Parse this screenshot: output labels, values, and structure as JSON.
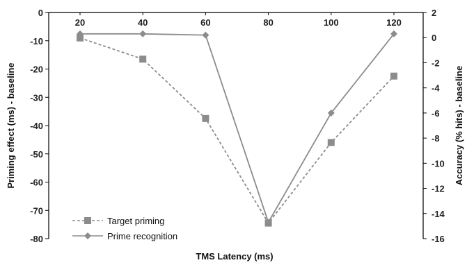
{
  "chart_data": {
    "type": "line",
    "x": [
      20,
      40,
      60,
      80,
      100,
      120
    ],
    "xlabel": "TMS Latency (ms)",
    "ylabel_left": "Priming effect (ms) - baseline",
    "ylabel_right": "Accuracy (% hits) - baseline",
    "ylim_left": [
      -80,
      0
    ],
    "ylim_right": [
      -16,
      2
    ],
    "yticks_left": [
      0,
      -10,
      -20,
      -30,
      -40,
      -50,
      -60,
      -70,
      -80
    ],
    "yticks_right": [
      2,
      0,
      -2,
      -4,
      -6,
      -8,
      -10,
      -12,
      -14,
      -16
    ],
    "legend_position": "bottom-left",
    "grid": false,
    "series": [
      {
        "name": "Target priming",
        "axis": "left",
        "style": "dashed",
        "marker": "square",
        "color": "#8c8c8c",
        "values": [
          -9,
          -16.5,
          -37.5,
          -74.5,
          -46,
          -22.5
        ]
      },
      {
        "name": "Prime recognition",
        "axis": "right",
        "style": "solid",
        "marker": "diamond",
        "color": "#8c8c8c",
        "values": [
          0.3,
          0.3,
          0.2,
          -14.7,
          -6.0,
          0.3
        ]
      }
    ]
  }
}
